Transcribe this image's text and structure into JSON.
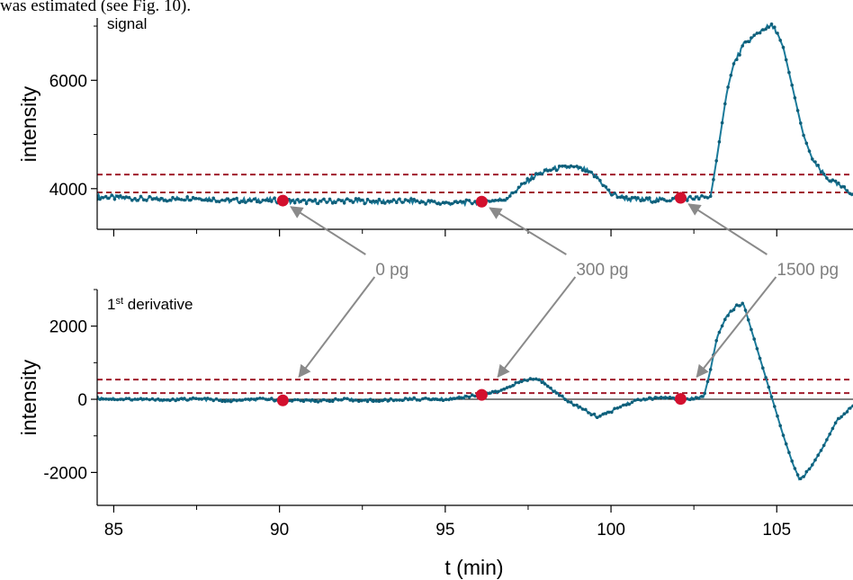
{
  "header_text": "was estimated (see Fig. 10).",
  "chart_data": [
    {
      "type": "line",
      "panel_label": "signal",
      "xlabel": "",
      "ylabel": "intensity",
      "xlim": [
        84.5,
        107.3
      ],
      "ylim": [
        3250,
        7150
      ],
      "yticks": [
        4000,
        6000
      ],
      "ytick_labels": [
        "4000",
        "6000"
      ],
      "threshold_lines": [
        3930,
        4260
      ],
      "line_color": "#1a7a9a",
      "threshold_color": "#a01c2c",
      "series": [
        {
          "x": [
            84.5,
            85.5,
            86.5,
            87.5,
            88.5,
            89.5,
            90.1,
            91.0,
            92.0,
            93.0,
            94.0,
            95.0,
            96.1,
            96.8,
            97.2,
            97.6,
            98.0,
            98.4,
            98.8,
            99.2,
            99.6,
            100.0,
            100.6,
            101.2,
            101.8,
            102.1,
            102.5,
            103.0,
            103.1,
            103.3,
            103.5,
            103.7,
            104.0,
            104.3,
            104.6,
            104.85,
            105.0,
            105.2,
            105.5,
            105.8,
            106.1,
            106.5,
            106.9,
            107.3
          ],
          "y": [
            3850,
            3820,
            3800,
            3830,
            3780,
            3790,
            3780,
            3760,
            3780,
            3760,
            3770,
            3730,
            3760,
            3800,
            4000,
            4200,
            4320,
            4380,
            4400,
            4350,
            4200,
            3900,
            3800,
            3790,
            3800,
            3830,
            3820,
            3850,
            4200,
            5000,
            5800,
            6300,
            6650,
            6800,
            6950,
            7000,
            6900,
            6600,
            5800,
            5000,
            4500,
            4200,
            4050,
            3900
          ]
        }
      ],
      "markers": [
        {
          "x": 90.1,
          "y": 3780
        },
        {
          "x": 96.1,
          "y": 3760
        },
        {
          "x": 102.1,
          "y": 3830
        }
      ]
    },
    {
      "type": "line",
      "panel_label_main": "1",
      "panel_label_sup": "st",
      "panel_label_rest": " derivative",
      "xlabel": "t (min)",
      "ylabel": "intensity",
      "xlim": [
        84.5,
        107.3
      ],
      "ylim": [
        -2900,
        3000
      ],
      "xticks": [
        85,
        90,
        95,
        100,
        105
      ],
      "xtick_labels": [
        "85",
        "90",
        "95",
        "100",
        "105"
      ],
      "yticks": [
        -2000,
        0,
        2000
      ],
      "ytick_labels": [
        "-2000",
        "0",
        "2000"
      ],
      "threshold_lines": [
        170,
        540
      ],
      "line_color": "#1a7a9a",
      "threshold_color": "#a01c2c",
      "series": [
        {
          "x": [
            84.5,
            85.5,
            86.5,
            87.5,
            88.5,
            89.5,
            90.1,
            91.0,
            92.0,
            93.0,
            94.0,
            95.0,
            96.1,
            96.6,
            97.0,
            97.4,
            97.7,
            98.0,
            98.4,
            98.8,
            99.2,
            99.6,
            100.0,
            100.4,
            100.8,
            101.2,
            101.6,
            102.1,
            102.5,
            102.8,
            103.0,
            103.2,
            103.5,
            103.8,
            104.0,
            104.3,
            104.6,
            104.9,
            105.2,
            105.5,
            105.7,
            106.0,
            106.4,
            106.8,
            107.3
          ],
          "y": [
            30,
            0,
            -20,
            10,
            -40,
            0,
            -20,
            -40,
            -10,
            -40,
            10,
            0,
            130,
            200,
            380,
            520,
            560,
            450,
            150,
            -100,
            -300,
            -480,
            -330,
            -150,
            -30,
            20,
            50,
            -10,
            20,
            60,
            800,
            1700,
            2300,
            2550,
            2600,
            1700,
            800,
            -100,
            -1000,
            -1800,
            -2200,
            -1900,
            -1300,
            -600,
            -150
          ]
        }
      ],
      "markers": [
        {
          "x": 90.1,
          "y": -30
        },
        {
          "x": 96.1,
          "y": 120
        },
        {
          "x": 102.1,
          "y": 10
        }
      ]
    }
  ],
  "annotations": [
    {
      "label": "0 pg",
      "marker_x": 90.1
    },
    {
      "label": "300 pg",
      "marker_x": 96.1
    },
    {
      "label": "1500 pg",
      "marker_x": 102.1
    }
  ]
}
